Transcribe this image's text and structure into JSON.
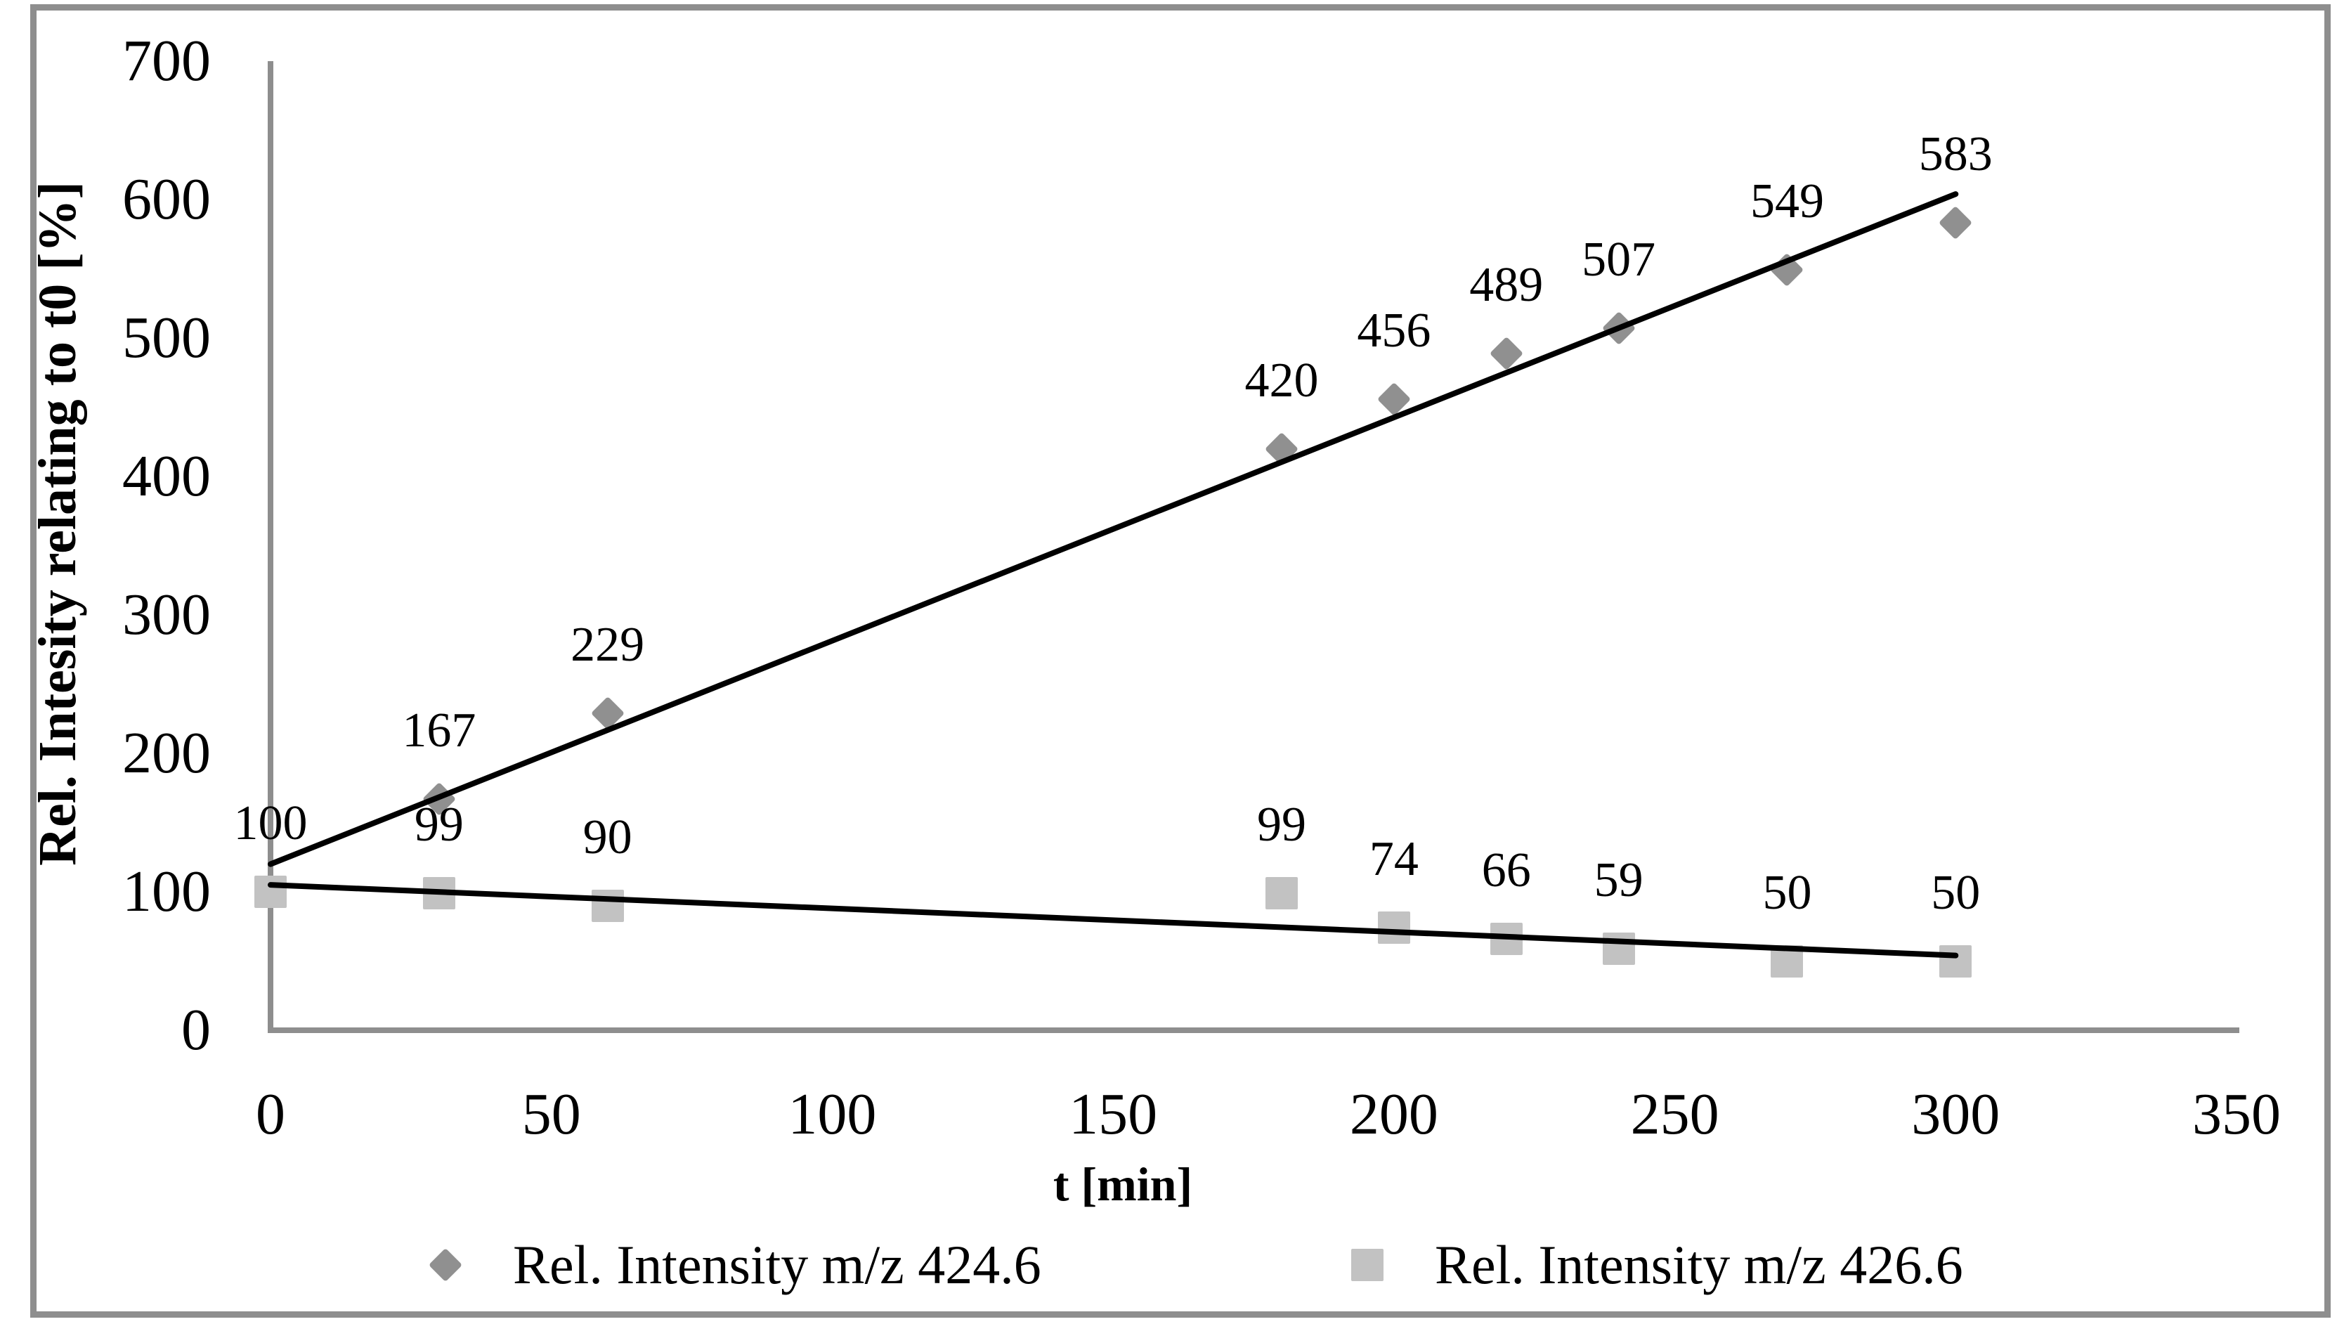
{
  "figure": {
    "background": "#ffffff",
    "border_color": "#8e8e8e",
    "axis_color": "#8e8e8e",
    "trendline_color": "#000000"
  },
  "chart_data": {
    "type": "scatter",
    "title": "",
    "xlabel": "t [min]",
    "ylabel": "Rel. Intesity relating to t0 [%]",
    "xlim": [
      0,
      350
    ],
    "ylim": [
      0,
      700
    ],
    "x_ticks": [
      0,
      50,
      100,
      150,
      200,
      250,
      300,
      350
    ],
    "y_ticks": [
      0,
      100,
      200,
      300,
      400,
      500,
      600,
      700
    ],
    "grid": false,
    "legend_position": "bottom",
    "x": [
      0,
      30,
      60,
      180,
      200,
      220,
      240,
      270,
      300
    ],
    "series": [
      {
        "name": "Rel. Intensity m/z 424.6",
        "marker": "diamond",
        "color": "#909090",
        "values": [
          100,
          167,
          229,
          420,
          456,
          489,
          507,
          549,
          583
        ],
        "labels": [
          "",
          "167",
          "229",
          "420",
          "456",
          "489",
          "507",
          "549",
          "583"
        ],
        "trendline": {
          "x_start": 0,
          "y_start": 120,
          "x_end": 300,
          "y_end": 604
        }
      },
      {
        "name": "Rel. Intensity m/z 426.6",
        "marker": "square",
        "color": "#c2c2c2",
        "values": [
          100,
          99,
          90,
          99,
          74,
          66,
          59,
          50,
          50
        ],
        "labels": [
          "100",
          "99",
          "90",
          "99",
          "74",
          "66",
          "59",
          "50",
          "50"
        ],
        "trendline": {
          "x_start": 0,
          "y_start": 105,
          "x_end": 300,
          "y_end": 54
        }
      }
    ]
  },
  "legend": {
    "items": [
      {
        "label": "Rel. Intensity m/z 424.6",
        "marker": "diamond",
        "color": "#909090"
      },
      {
        "label": "Rel. Intensity m/z 426.6",
        "marker": "square",
        "color": "#c2c2c2"
      }
    ]
  }
}
